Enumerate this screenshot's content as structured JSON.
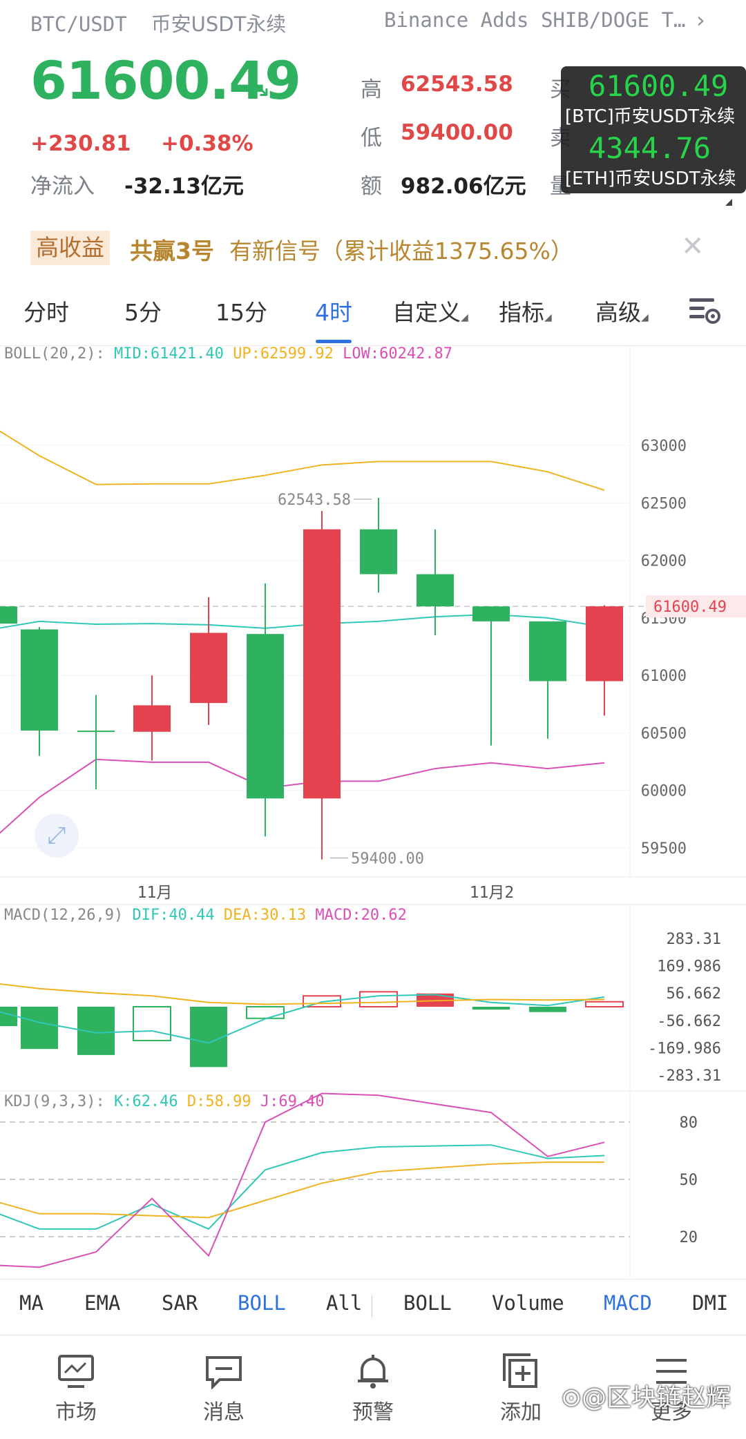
{
  "header": {
    "pair": "BTC/USDT",
    "pair_sub": "币安USDT永续",
    "news": "Binance Adds SHIB/DOGE T…"
  },
  "ticker": {
    "price": "61600.49",
    "change": "+230.81",
    "change_pct": "+0.38%",
    "inflow_label": "净流入",
    "inflow_value": "-32.13亿元",
    "high_label": "高",
    "high_value": "62543.58",
    "low_label": "低",
    "low_value": "59400.00",
    "amount_label": "额",
    "amount_value": "982.06亿元",
    "buy_label": "买",
    "sell_label": "卖",
    "vol_label": "量"
  },
  "overlay": {
    "btc_price": "61600.49",
    "btc_label": "[BTC]币安USDT永续",
    "eth_price": "4344.76",
    "eth_label": "[ETH]币安USDT永续"
  },
  "signal": {
    "badge": "高收益",
    "name": "共赢3号",
    "text": "有新信号（累计收益1375.65%）"
  },
  "tabs": {
    "t1": "分时",
    "t2": "5分",
    "t3": "15分",
    "t4": "4时",
    "t5": "自定义",
    "t6": "指标",
    "t7": "高级"
  },
  "boll": {
    "label": "BOLL(20,2):",
    "mid": "MID:61421.40",
    "up": "UP:62599.92",
    "low": "LOW:60242.87"
  },
  "macd": {
    "label": "MACD(12,26,9)",
    "dif": "DIF:40.44",
    "dea": "DEA:30.13",
    "macd": "MACD:20.62"
  },
  "kdj": {
    "label": "KDJ(9,3,3):",
    "k": "K:62.46",
    "d": "D:58.99",
    "j": "J:69.40"
  },
  "bottom_tabs": {
    "b1": "MA",
    "b2": "EMA",
    "b3": "SAR",
    "b4": "BOLL",
    "b5": "All",
    "b6": "BOLL",
    "b7": "Volume",
    "b8": "MACD",
    "b9": "DMI"
  },
  "nav": {
    "n1": "市场",
    "n2": "消息",
    "n3": "预警",
    "n4": "添加",
    "n5": "更多"
  },
  "watermark": "@区块链赵辉",
  "colors": {
    "up": "#e5424f",
    "down": "#2eb260",
    "accent": "#2d72e0",
    "boll_up": "#f0b21f",
    "boll_mid": "#2fc7b5",
    "boll_low": "#d94fb6"
  },
  "chart_data": [
    {
      "type": "candlestick",
      "title": "BOLL(20,2)",
      "ylim": [
        59500,
        63000
      ],
      "yticks": [
        63000,
        62500,
        62000,
        61500,
        61000,
        60500,
        60000,
        59500
      ],
      "ytick_labels": [
        "63000",
        "62500",
        "62000",
        "61500",
        "61000",
        "60500",
        "60000",
        "59500"
      ],
      "x_labels": [
        "11月",
        "11月2"
      ],
      "last_price_label": "61600.49",
      "high_marker_label": "62543.58",
      "low_marker_label": "59400.00",
      "candles": [
        {
          "o": 61600,
          "h": 61700,
          "l": 61300,
          "c": 61450
        },
        {
          "o": 61400,
          "h": 61420,
          "l": 60300,
          "c": 60520
        },
        {
          "o": 60520,
          "h": 60830,
          "l": 60010,
          "c": 60510
        },
        {
          "o": 60510,
          "h": 61000,
          "l": 60260,
          "c": 60740
        },
        {
          "o": 60760,
          "h": 61680,
          "l": 60570,
          "c": 61370
        },
        {
          "o": 61360,
          "h": 61800,
          "l": 59600,
          "c": 59930
        },
        {
          "o": 59930,
          "h": 62430,
          "l": 59400,
          "c": 62270
        },
        {
          "o": 62270,
          "h": 62543.58,
          "l": 61720,
          "c": 61880
        },
        {
          "o": 61880,
          "h": 62270,
          "l": 61350,
          "c": 61600
        },
        {
          "o": 61600,
          "h": 61600,
          "l": 60390,
          "c": 61470
        },
        {
          "o": 61470,
          "h": 61470,
          "l": 60450,
          "c": 60950
        },
        {
          "o": 60950,
          "h": 61610,
          "l": 60650,
          "c": 61600.49
        }
      ],
      "series": [
        {
          "name": "UP",
          "values": [
            63130,
            62910,
            62660,
            62665,
            62665,
            62740,
            62830,
            62860,
            62860,
            62860,
            62770,
            62610
          ]
        },
        {
          "name": "MID",
          "values": [
            61410,
            61470,
            61445,
            61450,
            61440,
            61410,
            61450,
            61470,
            61510,
            61530,
            61500,
            61420
          ]
        },
        {
          "name": "LOW",
          "values": [
            59620,
            59940,
            60270,
            60245,
            60245,
            60020,
            60080,
            60080,
            60190,
            60240,
            60190,
            60240
          ]
        }
      ]
    },
    {
      "type": "bar",
      "title": "MACD(12,26,9)",
      "yticks": [
        283.31,
        169.986,
        56.662,
        -56.662,
        -169.986,
        -283.31
      ],
      "ytick_labels": [
        "283.31",
        "169.986",
        "56.662",
        "-56.662",
        "-169.986",
        "-283.31"
      ],
      "ylim": [
        -283.31,
        283.31
      ],
      "series": [
        {
          "name": "MACD",
          "values": [
            -80,
            -175,
            -200,
            -140,
            -250,
            -48,
            45,
            62,
            55,
            -12,
            -22,
            20.62
          ]
        },
        {
          "name": "DIF",
          "values": [
            -20,
            -65,
            -108,
            -100,
            -150,
            -50,
            20,
            45,
            50,
            18,
            5,
            40.44
          ]
        },
        {
          "name": "DEA",
          "values": [
            95,
            75,
            58,
            45,
            18,
            10,
            14,
            18,
            25,
            30,
            28,
            30.13
          ]
        }
      ]
    },
    {
      "type": "line",
      "title": "KDJ(9,3,3)",
      "ylim": [
        0,
        100
      ],
      "yticks": [
        80,
        50,
        20
      ],
      "ytick_labels": [
        "80",
        "50",
        "20"
      ],
      "series": [
        {
          "name": "K",
          "values": [
            32,
            24,
            24,
            37,
            24,
            55,
            64,
            67,
            68,
            61,
            62.46
          ]
        },
        {
          "name": "D",
          "values": [
            38,
            32,
            32,
            31,
            30,
            39,
            48,
            54,
            58,
            59,
            58.99
          ]
        },
        {
          "name": "J",
          "values": [
            5,
            4,
            12,
            40,
            10,
            80,
            95,
            94,
            85,
            62,
            69.4
          ]
        }
      ]
    }
  ]
}
